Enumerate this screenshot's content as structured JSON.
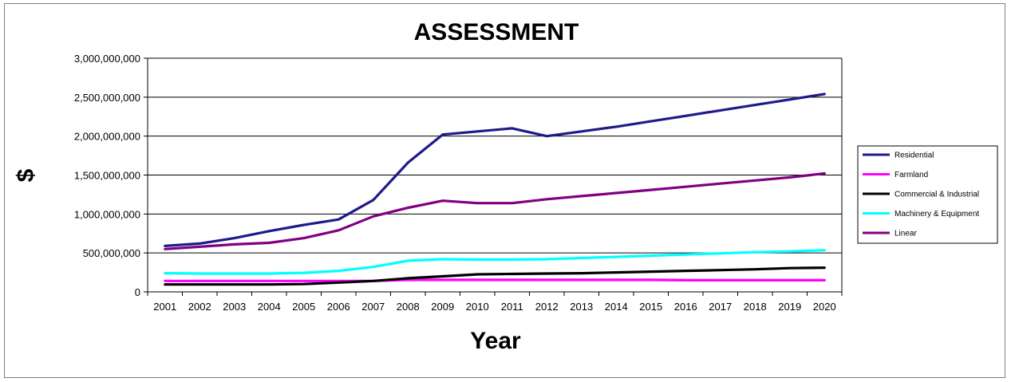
{
  "chart_data": {
    "type": "line",
    "title": "ASSESSMENT",
    "xlabel": "Year",
    "ylabel": "$",
    "ylim": [
      0,
      3000000000
    ],
    "yticks": [
      0,
      500000000,
      1000000000,
      1500000000,
      2000000000,
      2500000000,
      3000000000
    ],
    "ytick_labels": [
      "0",
      "500,000,000",
      "1,000,000,000",
      "1,500,000,000",
      "2,000,000,000",
      "2,500,000,000",
      "3,000,000,000"
    ],
    "grid": true,
    "legend_position": "right",
    "x": [
      "2001",
      "2002",
      "2003",
      "2004",
      "2005",
      "2006",
      "2007",
      "2008",
      "2009",
      "2010",
      "2011",
      "2012",
      "2013",
      "2014",
      "2015",
      "2016",
      "2017",
      "2018",
      "2019",
      "2020"
    ],
    "series": [
      {
        "name": "Residential",
        "color": "#1f1a8a",
        "values": [
          590000000,
          620000000,
          690000000,
          780000000,
          860000000,
          930000000,
          1180000000,
          1660000000,
          2020000000,
          2060000000,
          2100000000,
          2000000000,
          2060000000,
          2120000000,
          2190000000,
          2260000000,
          2330000000,
          2400000000,
          2470000000,
          2540000000
        ]
      },
      {
        "name": "Farmland",
        "color": "#ff00ff",
        "values": [
          140000000,
          140000000,
          140000000,
          140000000,
          140000000,
          140000000,
          140000000,
          155000000,
          155000000,
          155000000,
          155000000,
          155000000,
          155000000,
          155000000,
          155000000,
          150000000,
          150000000,
          150000000,
          150000000,
          150000000
        ]
      },
      {
        "name": "Commercial & Industrial",
        "color": "#000000",
        "values": [
          95000000,
          95000000,
          95000000,
          95000000,
          100000000,
          120000000,
          140000000,
          175000000,
          200000000,
          225000000,
          230000000,
          235000000,
          240000000,
          250000000,
          260000000,
          270000000,
          280000000,
          290000000,
          305000000,
          310000000
        ]
      },
      {
        "name": "Machinery & Equipment",
        "color": "#00ffff",
        "values": [
          240000000,
          235000000,
          235000000,
          235000000,
          245000000,
          270000000,
          320000000,
          400000000,
          420000000,
          415000000,
          415000000,
          420000000,
          435000000,
          450000000,
          465000000,
          480000000,
          495000000,
          510000000,
          520000000,
          535000000
        ]
      },
      {
        "name": "Linear",
        "color": "#800080",
        "values": [
          550000000,
          580000000,
          610000000,
          630000000,
          690000000,
          790000000,
          970000000,
          1080000000,
          1170000000,
          1140000000,
          1140000000,
          1190000000,
          1230000000,
          1270000000,
          1310000000,
          1350000000,
          1390000000,
          1430000000,
          1470000000,
          1520000000
        ]
      }
    ]
  }
}
